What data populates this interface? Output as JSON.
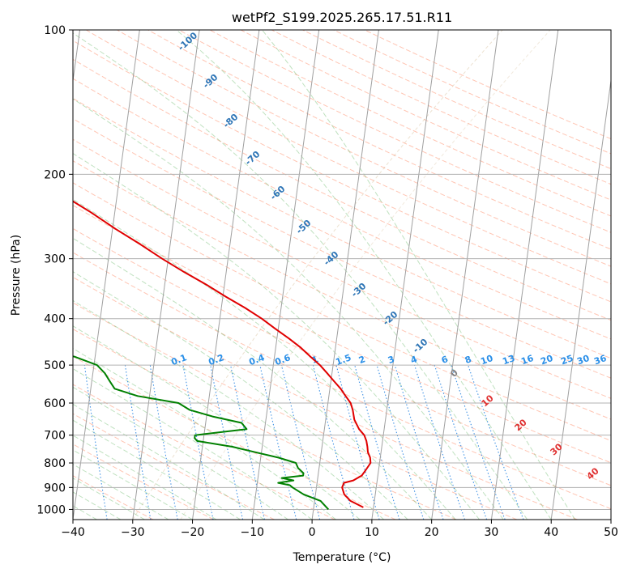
{
  "chart_data": {
    "type": "line",
    "subtype": "skew-t log-p diagram",
    "title": "wetPf2_S199.2025.265.17.51.R11",
    "xlabel": "Temperature (°C)",
    "ylabel": "Pressure (hPa)",
    "xlim": [
      -40,
      50
    ],
    "ylim": [
      1050,
      100
    ],
    "y_scale": "log",
    "x_ticks": [
      -40,
      -30,
      -20,
      -10,
      0,
      10,
      20,
      30,
      40,
      50
    ],
    "x_tick_labels": [
      "−40",
      "−30",
      "−20",
      "−10",
      "0",
      "10",
      "20",
      "30",
      "40",
      "50"
    ],
    "y_ticks": [
      1000,
      900,
      800,
      700,
      600,
      500,
      400,
      300,
      200,
      100
    ],
    "y_tick_labels": [
      "1000",
      "900",
      "800",
      "700",
      "600",
      "500",
      "400",
      "300",
      "200",
      "100"
    ],
    "grid": true,
    "series": [
      {
        "color": "#e00000",
        "pressure": [
          990,
          960,
          930,
          900,
          880,
          870,
          850,
          830,
          800,
          780,
          760,
          740,
          720,
          700,
          680,
          650,
          620,
          600,
          580,
          560,
          540,
          520,
          500,
          480,
          460,
          440,
          420,
          400,
          380,
          360,
          340,
          320,
          300,
          280,
          260,
          240,
          225,
          210,
          200,
          190,
          180,
          170,
          160,
          150,
          140,
          130,
          120,
          110,
          100
        ],
        "temperature": [
          8.3,
          6.0,
          4.8,
          4.3,
          4.5,
          6.0,
          7.3,
          7.8,
          8.5,
          8.3,
          7.8,
          7.6,
          7.3,
          6.8,
          5.8,
          4.8,
          4.3,
          3.8,
          2.8,
          1.8,
          0.5,
          -0.8,
          -2.2,
          -4.0,
          -5.8,
          -8.0,
          -10.5,
          -13.0,
          -16.0,
          -19.5,
          -23.0,
          -27.0,
          -31.0,
          -35.0,
          -39.5,
          -44.0,
          -48.0,
          -52.0,
          -54.5,
          -56.0,
          -57.5,
          -58.5,
          -59.5,
          -60.5,
          -61.0,
          -62.0,
          -62.5,
          -63.0,
          -64.0
        ]
      },
      {
        "color": "#008000",
        "pressure": [
          1000,
          960,
          930,
          900,
          890,
          880,
          870,
          860,
          850,
          840,
          820,
          800,
          780,
          760,
          740,
          720,
          710,
          700,
          680,
          660,
          640,
          620,
          600,
          580,
          560,
          540,
          520,
          500,
          480,
          470,
          460,
          440,
          420,
          400,
          380,
          360,
          340,
          320,
          300,
          280,
          260,
          240,
          230,
          220,
          210,
          200,
          190,
          180,
          170,
          160,
          150,
          140,
          130,
          120,
          110,
          100
        ],
        "dewpoint": [
          2.5,
          1.0,
          -2.0,
          -4.0,
          -4.5,
          -6.5,
          -4.0,
          -6.0,
          -2.5,
          -2.5,
          -3.5,
          -4.0,
          -7.0,
          -11.0,
          -15.0,
          -21.0,
          -21.5,
          -21.5,
          -13.0,
          -14.0,
          -19.0,
          -23.0,
          -25.0,
          -32.0,
          -36.0,
          -37.0,
          -38.0,
          -39.5,
          -43.5,
          -47.0,
          -48.0,
          -46.5,
          -46.0,
          -47.0,
          -48.5,
          -50.0,
          -51.0,
          -52.0,
          -54.0,
          -56.0,
          -56.5,
          -57.0,
          -58.0,
          -61.5,
          -65.0,
          -65.5,
          -64.5,
          -61.0,
          -63.5,
          -67.0,
          -69.5,
          -70.0,
          -71.0,
          -71.5,
          -71.0,
          -70.0
        ]
      }
    ],
    "dry_adiabat_labels": [
      "-100",
      "-90",
      "-80",
      "-70",
      "-60",
      "-50",
      "-40",
      "-30",
      "-20",
      "-10"
    ],
    "mixing_ratio_labels": [
      "0.1",
      "0.2",
      "0.4",
      "0.6",
      "1",
      "1.5",
      "2",
      "3",
      "4",
      "6",
      "8",
      "10",
      "13",
      "16",
      "20",
      "25",
      "30",
      "36"
    ],
    "moist_adiabat_labels": [
      "0",
      "10",
      "20",
      "30",
      "40"
    ]
  }
}
